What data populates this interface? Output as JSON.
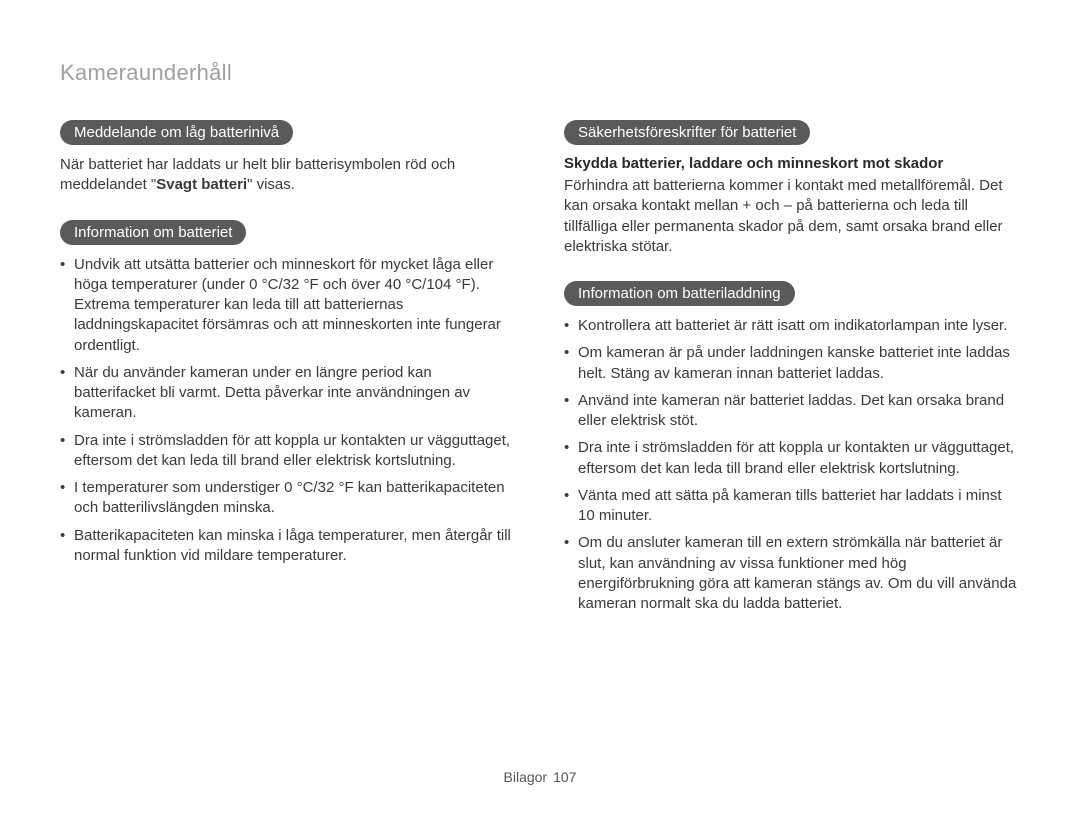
{
  "page": {
    "title": "Kameraunderhåll",
    "footer_label": "Bilagor",
    "page_number": "107"
  },
  "colors": {
    "pill_bg": "#5a5a5a",
    "pill_fg": "#ffffff",
    "title_fg": "#a0a0a0",
    "body_fg": "#3a3a3a",
    "background": "#ffffff"
  },
  "typography": {
    "title_fontsize": 22,
    "pill_fontsize": 15,
    "body_fontsize": 15,
    "footer_fontsize": 14
  },
  "left": {
    "section1": {
      "heading": "Meddelande om låg batterinivå",
      "para_prefix": "När batteriet har laddats ur helt blir batterisymbolen röd och meddelandet \"",
      "para_bold": "Svagt batteri",
      "para_suffix": "\" visas."
    },
    "section2": {
      "heading": "Information om batteriet",
      "bullets": [
        "Undvik att utsätta batterier och minneskort för mycket låga eller höga temperaturer (under 0 °C/32 °F och över 40 °C/104 °F). Extrema temperaturer kan leda till att batteriernas laddningskapacitet försämras och att minneskorten inte fungerar ordentligt.",
        "När du använder kameran under en längre period kan batterifacket bli varmt. Detta påverkar inte användningen av kameran.",
        "Dra inte i strömsladden för att koppla ur kontakten ur vägguttaget, eftersom det kan leda till brand eller elektrisk kortslutning.",
        "I temperaturer som understiger 0 °C/32 °F kan batterikapaciteten och batterilivslängden minska.",
        "Batterikapaciteten kan minska i låga temperaturer, men återgår till normal funktion vid mildare temperaturer."
      ]
    }
  },
  "right": {
    "section1": {
      "heading": "Säkerhetsföreskrifter för batteriet",
      "subhead": "Skydda batterier, laddare och minneskort mot skador",
      "para": "Förhindra att batterierna kommer i kontakt med metallföremål. Det kan orsaka kontakt mellan + och – på batterierna och leda till tillfälliga eller permanenta skador på dem, samt orsaka brand eller elektriska stötar."
    },
    "section2": {
      "heading": "Information om batteriladdning",
      "bullets": [
        "Kontrollera att batteriet är rätt isatt om indikatorlampan inte lyser.",
        "Om kameran är på under laddningen kanske batteriet inte laddas helt. Stäng av kameran innan batteriet laddas.",
        "Använd inte kameran när batteriet laddas. Det kan orsaka brand eller elektrisk stöt.",
        "Dra inte i strömsladden för att koppla ur kontakten ur vägguttaget, eftersom det kan leda till brand eller elektrisk kortslutning.",
        "Vänta med att sätta på kameran tills batteriet har laddats i minst 10 minuter.",
        "Om du ansluter kameran till en extern strömkälla när batteriet är slut, kan användning av vissa funktioner med hög energiförbrukning göra att kameran stängs av. Om du vill använda kameran normalt ska du ladda batteriet."
      ]
    }
  }
}
